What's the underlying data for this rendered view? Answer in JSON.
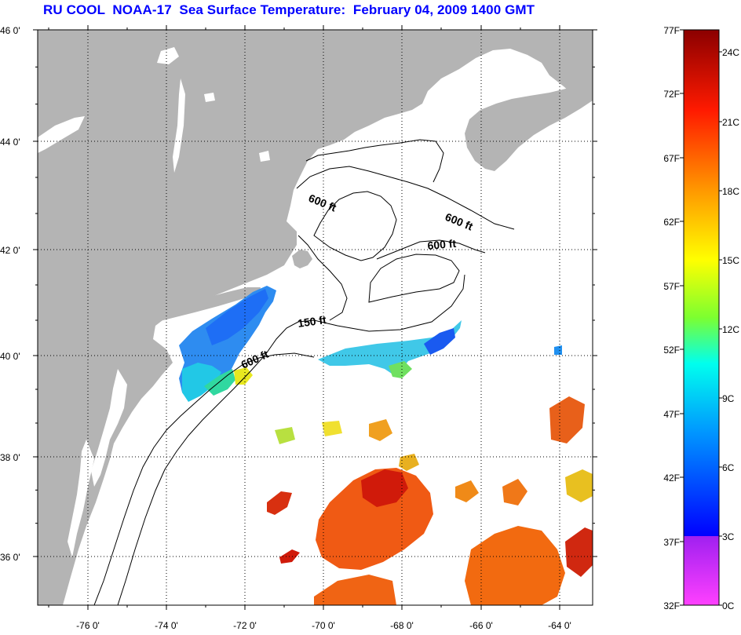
{
  "title": "RU COOL  NOAA-17  Sea Surface Temperature:  February 04, 2009 1400 GMT",
  "map": {
    "lat_labels": [
      "46 0'",
      "44 0'",
      "42 0'",
      "40 0'",
      "38 0'",
      "36 0'"
    ],
    "lon_labels": [
      "-76 0'",
      "-74 0'",
      "-72 0'",
      "-70 0'",
      "-68 0'",
      "-66 0'",
      "-64 0'"
    ],
    "land_color": "#b4b4b4",
    "water_color": "#ffffff",
    "contours": [
      {
        "label": "600 ft",
        "depth_ft": 600
      },
      {
        "label": "600 ft",
        "depth_ft": 600
      },
      {
        "label": "600 ft",
        "depth_ft": 600
      },
      {
        "label": "150 ft",
        "depth_ft": 150
      },
      {
        "label": "600 ft",
        "depth_ft": 600
      }
    ]
  },
  "colorbar": {
    "fahrenheit_labels": [
      "77F",
      "72F",
      "67F",
      "62F",
      "57F",
      "52F",
      "47F",
      "42F",
      "37F",
      "32F"
    ],
    "celsius_labels": [
      "24C",
      "21C",
      "18C",
      "15C",
      "12C",
      "9C",
      "6C",
      "3C",
      "0C"
    ],
    "colors": [
      "#ff40ff",
      "#a020f0",
      "#0000ff",
      "#00c8ff",
      "#00ffcc",
      "#b4ff00",
      "#ffff00",
      "#ff8c00",
      "#ff0000",
      "#8b0000"
    ]
  }
}
